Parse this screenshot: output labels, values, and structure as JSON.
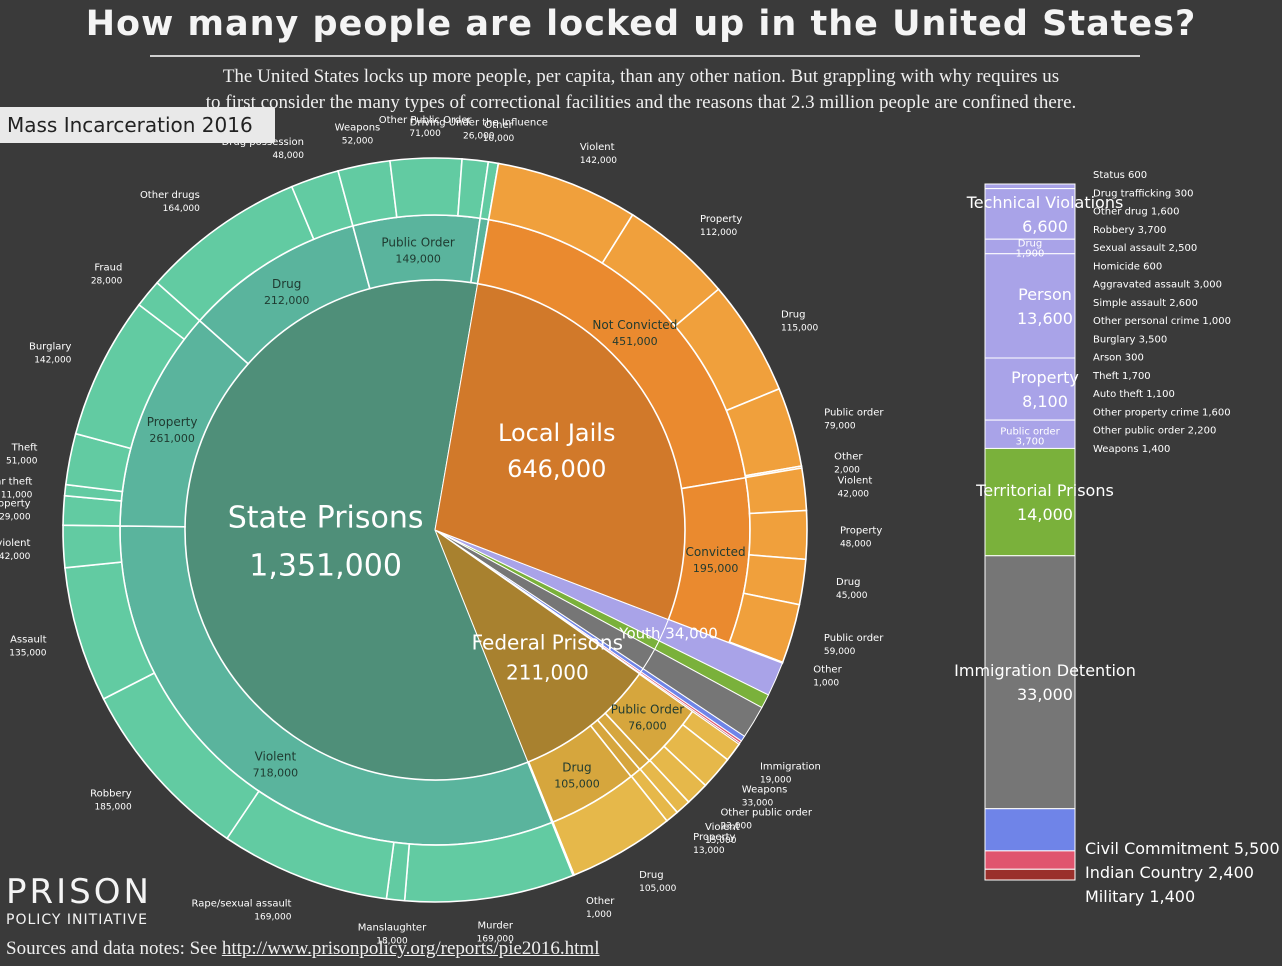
{
  "title": "How many people are locked up in the United States?",
  "subtitle_line1": "The United States locks up more people, per capita, than any other nation.  But grappling with why requires us",
  "subtitle_line2": "to first consider the many types of correctional facilities and the reasons that 2.3 million people are confined there.",
  "tab_label": "Mass Incarceration 2016",
  "logo_line1": "PRISON",
  "logo_line2": "POLICY INITIATIVE",
  "sources_prefix": "Sources and data notes: See ",
  "sources_link": "http://www.prisonpolicy.org/reports/pie2016.html",
  "colors": {
    "background": "#3a3a3a",
    "state_inner": "#4f8f79",
    "state_mid": "#5ab49d",
    "state_outer": "#62cba2",
    "jail_inner": "#d1792a",
    "jail_mid": "#ea8a2f",
    "jail_outer": "#f0a03c",
    "federal_inner": "#a8812f",
    "federal_mid": "#d6a63d",
    "federal_outer": "#e6b84a",
    "youth": "#a9a3e8",
    "territorial": "#7ab13b",
    "immigration": "#767676",
    "civil": "#6f84e8",
    "indian": "#e0546e",
    "military": "#9a2f2b"
  },
  "chart_data": {
    "type": "pie",
    "title": "How many people are locked up in the United States?",
    "start_angle_deg": 21,
    "center_labels": {
      "state_name": "State Prisons",
      "state_value": "1,351,000",
      "jail_name": "Local Jails",
      "jail_value": "646,000",
      "federal_name": "Federal Prisons",
      "federal_value": "211,000",
      "youth_label": "Youth 34,000"
    },
    "main": [
      {
        "name": "Youth",
        "value": 34000,
        "color": "youth"
      },
      {
        "name": "Territorial Prisons",
        "value": 14000,
        "color": "territorial"
      },
      {
        "name": "Immigration Detention",
        "value": 33000,
        "color": "immigration"
      },
      {
        "name": "Civil Commitment",
        "value": 5500,
        "color": "civil"
      },
      {
        "name": "Indian Country",
        "value": 2400,
        "color": "indian"
      },
      {
        "name": "Military",
        "value": 1400,
        "color": "military"
      },
      {
        "name": "Federal Prisons",
        "value": 211000,
        "color": "federal_inner"
      },
      {
        "name": "State Prisons",
        "value": 1351000,
        "color": "state_inner"
      },
      {
        "name": "Local Jails",
        "value": 646000,
        "color": "jail_inner"
      }
    ],
    "state_middle": [
      {
        "name": "Violent",
        "value": 718000,
        "label": "Violent",
        "value_text": "718,000"
      },
      {
        "name": "Property",
        "value": 261000,
        "label": "Property",
        "value_text": "261,000"
      },
      {
        "name": "Drug",
        "value": 212000,
        "label": "Drug",
        "value_text": "212,000"
      },
      {
        "name": "Public Order",
        "value": 149000,
        "label": "Public Order",
        "value_text": "149,000"
      },
      {
        "name": "Other",
        "value": 10000,
        "label": "",
        "value_text": ""
      }
    ],
    "state_outer": [
      {
        "label": "Murder",
        "value": 169000,
        "value_text": "169,000"
      },
      {
        "label": "Manslaughter",
        "value": 18000,
        "value_text": "18,000"
      },
      {
        "label": "Rape/sexual assault",
        "value": 169000,
        "value_text": "169,000"
      },
      {
        "label": "Robbery",
        "value": 185000,
        "value_text": "185,000"
      },
      {
        "label": "Assault",
        "value": 135000,
        "value_text": "135,000"
      },
      {
        "label": "Other violent",
        "value": 42000,
        "value_text": "42,000"
      },
      {
        "label": "Other property",
        "value": 29000,
        "value_text": "29,000"
      },
      {
        "label": "Car theft",
        "value": 11000,
        "value_text": "11,000"
      },
      {
        "label": "Theft",
        "value": 51000,
        "value_text": "51,000"
      },
      {
        "label": "Burglary",
        "value": 142000,
        "value_text": "142,000"
      },
      {
        "label": "Fraud",
        "value": 28000,
        "value_text": "28,000"
      },
      {
        "label": "Other drugs",
        "value": 164000,
        "value_text": "164,000"
      },
      {
        "label": "Drug possession",
        "value": 48000,
        "value_text": "48,000"
      },
      {
        "label": "Weapons",
        "value": 52000,
        "value_text": "52,000"
      },
      {
        "label": "Other Public Order",
        "value": 71000,
        "value_text": "71,000"
      },
      {
        "label": "Driving Under the Influence",
        "value": 26000,
        "value_text": "26,000"
      },
      {
        "label": "Other",
        "value": 10000,
        "value_text": "10,000"
      }
    ],
    "jail_middle": [
      {
        "name": "Not Convicted",
        "value": 451000,
        "label": "Not Convicted",
        "value_text": "451,000"
      },
      {
        "name": "Convicted",
        "value": 195000,
        "label": "Convicted",
        "value_text": "195,000"
      }
    ],
    "jail_outer": [
      {
        "label": "Violent",
        "value": 142000,
        "value_text": "142,000"
      },
      {
        "label": "Property",
        "value": 112000,
        "value_text": "112,000"
      },
      {
        "label": "Drug",
        "value": 115000,
        "value_text": "115,000"
      },
      {
        "label": "Public order",
        "value": 79000,
        "value_text": "79,000"
      },
      {
        "label": "Other",
        "value": 2000,
        "value_text": "2,000"
      },
      {
        "label": "Violent",
        "value": 42000,
        "value_text": "42,000"
      },
      {
        "label": "Property",
        "value": 48000,
        "value_text": "48,000"
      },
      {
        "label": "Drug",
        "value": 45000,
        "value_text": "45,000"
      },
      {
        "label": "Public order",
        "value": 59000,
        "value_text": "59,000"
      },
      {
        "label": "Other",
        "value": 1000,
        "value_text": "1,000"
      }
    ],
    "federal_middle": [
      {
        "name": "Public Order",
        "value": 76000,
        "label": "Public Order",
        "value_text": "76,000"
      },
      {
        "name": "Violent",
        "value": 15000,
        "label": "",
        "value_text": ""
      },
      {
        "name": "Property",
        "value": 13000,
        "label": "",
        "value_text": ""
      },
      {
        "name": "Drug",
        "value": 105000,
        "label": "Drug",
        "value_text": "105,000"
      },
      {
        "name": "Other",
        "value": 1000,
        "label": "",
        "value_text": ""
      }
    ],
    "federal_outer": [
      {
        "label": "Immigration",
        "value": 19000,
        "value_text": "19,000"
      },
      {
        "label": "Weapons",
        "value": 33000,
        "value_text": "33,000"
      },
      {
        "label": "Other public order",
        "value": 23000,
        "value_text": "23,000"
      },
      {
        "label": "Violent",
        "value": 15000,
        "value_text": "15,000"
      },
      {
        "label": "Property",
        "value": 13000,
        "value_text": "13,000"
      },
      {
        "label": "Drug",
        "value": 105000,
        "value_text": "105,000"
      },
      {
        "label": "Other",
        "value": 1000,
        "value_text": "1,000"
      }
    ],
    "side_bar": {
      "segments": [
        {
          "name": "Status",
          "value": 600,
          "color": "youth",
          "label": "",
          "value_text": ""
        },
        {
          "name": "Technical Violations",
          "value": 6600,
          "color": "youth",
          "label": "Technical Violations",
          "value_text": "6,600"
        },
        {
          "name": "Drug",
          "value": 1900,
          "color": "youth",
          "label": "Drug",
          "value_text": "1,900"
        },
        {
          "name": "Person",
          "value": 13600,
          "color": "youth",
          "label": "Person",
          "value_text": "13,600"
        },
        {
          "name": "Property",
          "value": 8100,
          "color": "youth",
          "label": "Property",
          "value_text": "8,100"
        },
        {
          "name": "Public order",
          "value": 3700,
          "color": "youth",
          "label": "Public order",
          "value_text": "3,700"
        },
        {
          "name": "Territorial Prisons",
          "value": 14000,
          "color": "territorial",
          "label": "Territorial Prisons",
          "value_text": "14,000"
        },
        {
          "name": "Immigration Detention",
          "value": 33000,
          "color": "immigration",
          "label": "Immigration Detention",
          "value_text": "33,000"
        },
        {
          "name": "Civil Commitment",
          "value": 5500,
          "color": "civil",
          "label": "",
          "value_text": ""
        },
        {
          "name": "Indian Country",
          "value": 2400,
          "color": "indian",
          "label": "",
          "value_text": ""
        },
        {
          "name": "Military",
          "value": 1400,
          "color": "military",
          "label": "",
          "value_text": ""
        }
      ],
      "youth_details": [
        {
          "label": "Status",
          "value_text": "600"
        },
        {
          "label": "Drug trafficking",
          "value_text": "300"
        },
        {
          "label": "Other drug",
          "value_text": "1,600"
        },
        {
          "label": "Robbery",
          "value_text": "3,700"
        },
        {
          "label": "Sexual assault",
          "value_text": "2,500"
        },
        {
          "label": "Homicide",
          "value_text": "600"
        },
        {
          "label": "Aggravated assault",
          "value_text": "3,000"
        },
        {
          "label": "Simple assault",
          "value_text": "2,600"
        },
        {
          "label": "Other personal crime",
          "value_text": "1,000"
        },
        {
          "label": "Burglary",
          "value_text": "3,500"
        },
        {
          "label": "Arson",
          "value_text": "300"
        },
        {
          "label": "Theft",
          "value_text": "1,700"
        },
        {
          "label": "Auto theft",
          "value_text": "1,100"
        },
        {
          "label": "Other property crime",
          "value_text": "1,600"
        },
        {
          "label": "Other public order",
          "value_text": "2,200"
        },
        {
          "label": "Weapons",
          "value_text": "1,400"
        }
      ],
      "bottom_labels": [
        {
          "label": "Civil Commitment",
          "value_text": "5,500"
        },
        {
          "label": "Indian Country",
          "value_text": "2,400"
        },
        {
          "label": "Military",
          "value_text": "1,400"
        }
      ]
    }
  }
}
